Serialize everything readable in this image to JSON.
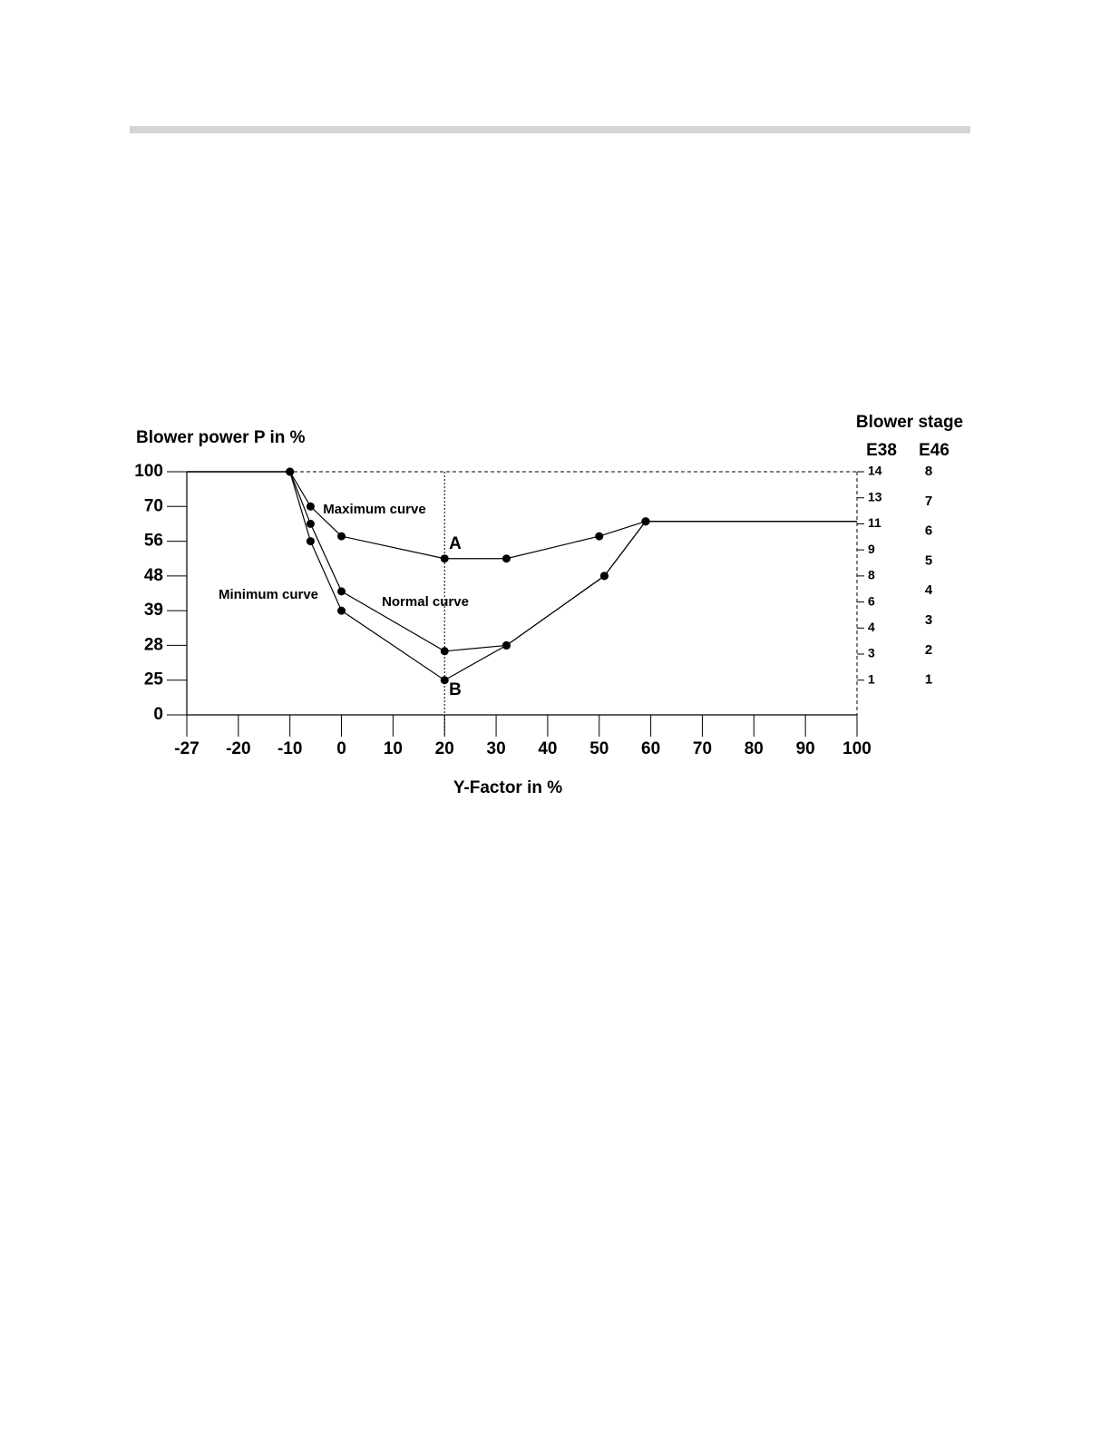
{
  "chart_data": {
    "type": "line",
    "y_label": "Blower power P in %",
    "x_label": "Y-Factor in %",
    "right_axis_title": "Blower stage",
    "right_axes": [
      {
        "label": "E38",
        "ticks": [
          14,
          13,
          11,
          9,
          8,
          6,
          4,
          3,
          1
        ]
      },
      {
        "label": "E46",
        "ticks": [
          8,
          7,
          6,
          5,
          4,
          3,
          2,
          1
        ]
      }
    ],
    "xlim": [
      -27,
      100
    ],
    "ylim": [
      0,
      100
    ],
    "xticks": [
      -27,
      -20,
      -10,
      0,
      10,
      20,
      30,
      40,
      50,
      60,
      70,
      80,
      90,
      100
    ],
    "yticks": [
      0,
      25,
      28,
      39,
      48,
      56,
      70,
      100
    ],
    "series": [
      {
        "name": "Maximum curve",
        "color": "#000000",
        "x": [
          -27,
          -10,
          -6,
          0,
          20,
          32,
          50,
          59,
          100
        ],
        "values": [
          100,
          100,
          70,
          58,
          52,
          52,
          58,
          64,
          64
        ]
      },
      {
        "name": "Normal curve",
        "color": "#000000",
        "x": [
          -27,
          -10,
          -6,
          0,
          20,
          32,
          51,
          59,
          100
        ],
        "values": [
          100,
          100,
          63,
          44,
          27.5,
          28,
          48,
          64,
          64
        ]
      },
      {
        "name": "Minimum curve",
        "color": "#000000",
        "x": [
          -27,
          -10,
          -6,
          0,
          20,
          32,
          51,
          59,
          100
        ],
        "values": [
          100,
          100,
          56,
          39,
          25,
          28,
          48,
          64,
          64
        ]
      }
    ],
    "annotations": [
      "A",
      "B"
    ]
  }
}
